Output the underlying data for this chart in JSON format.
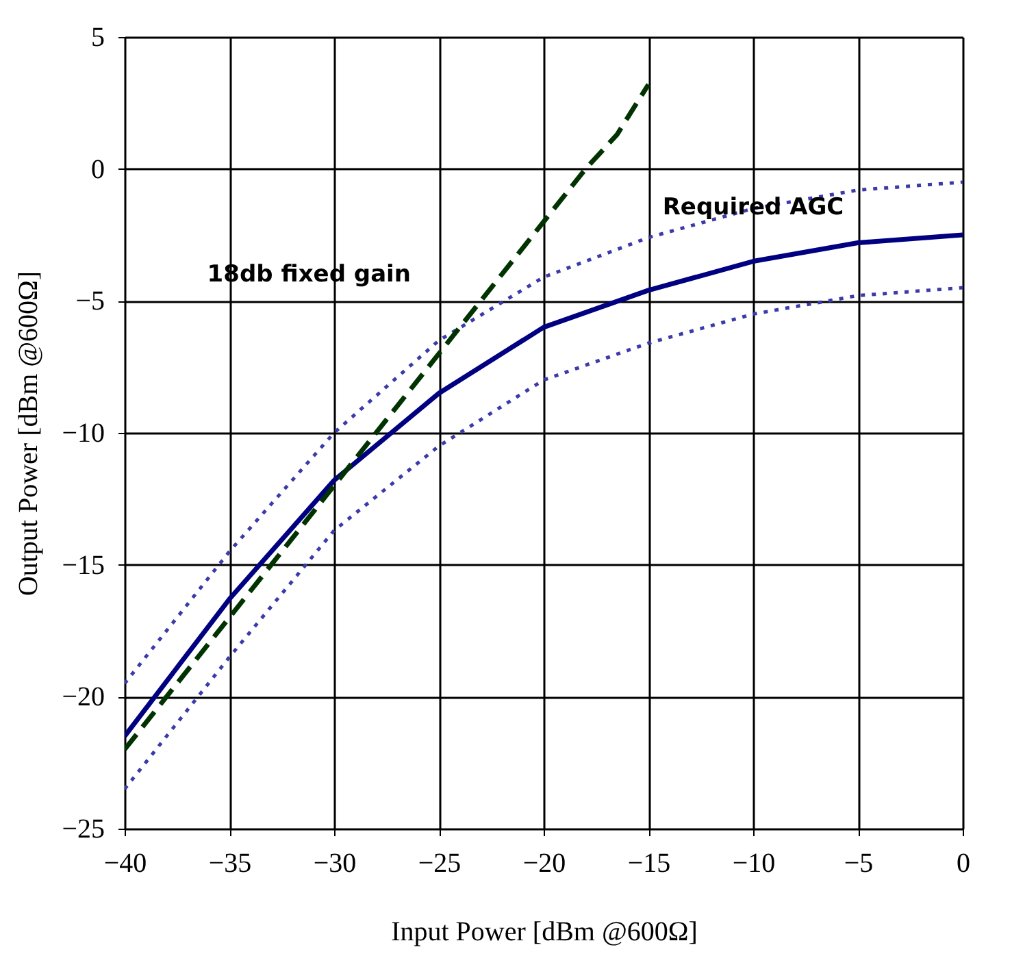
{
  "chart_data": {
    "type": "line",
    "xlabel": "Input Power [dBm @600Ω]",
    "ylabel": "Output Power [dBm @600Ω]",
    "xlim": [
      -40,
      0
    ],
    "ylim": [
      -25,
      5
    ],
    "xticks": [
      -40,
      -35,
      -30,
      -25,
      -20,
      -15,
      -10,
      -5,
      0
    ],
    "yticks": [
      -25,
      -20,
      -15,
      -10,
      -5,
      0,
      5
    ],
    "grid": true,
    "marker": "none",
    "series": [
      {
        "color": "#3a3aaa",
        "line_style": "dotted",
        "x": [
          -40,
          -35,
          -30,
          -25,
          -20,
          -15,
          -10,
          -5,
          0
        ],
        "values": [
          -19.5,
          -14.5,
          -10,
          -6.5,
          -4.1,
          -2.6,
          -1.5,
          -0.8,
          -0.5
        ]
      },
      {
        "color": "#3a3aaa",
        "line_style": "dotted",
        "x": [
          -40,
          -35,
          -30,
          -25,
          -20,
          -15,
          -10,
          -5,
          0
        ],
        "values": [
          -23.5,
          -18.5,
          -13.7,
          -10.5,
          -8,
          -6.6,
          -5.5,
          -4.8,
          -4.5
        ]
      },
      {
        "color": "#000080",
        "line_style": "solid",
        "x": [
          -40,
          -35,
          -30,
          -25,
          -20,
          -15,
          -10,
          -5,
          0
        ],
        "values": [
          -21.5,
          -16.3,
          -11.8,
          -8.5,
          -6,
          -4.6,
          -3.5,
          -2.8,
          -2.5
        ]
      },
      {
        "color": "#003300",
        "line_style": "dashed",
        "x": [
          -40,
          -35,
          -30,
          -25,
          -20,
          -18,
          -16.5,
          -15
        ],
        "values": [
          -22,
          -17,
          -12,
          -7,
          -2,
          0,
          1.3,
          3.2
        ]
      }
    ],
    "annotations": [
      "18db fixed gain",
      "Required AGC"
    ]
  }
}
